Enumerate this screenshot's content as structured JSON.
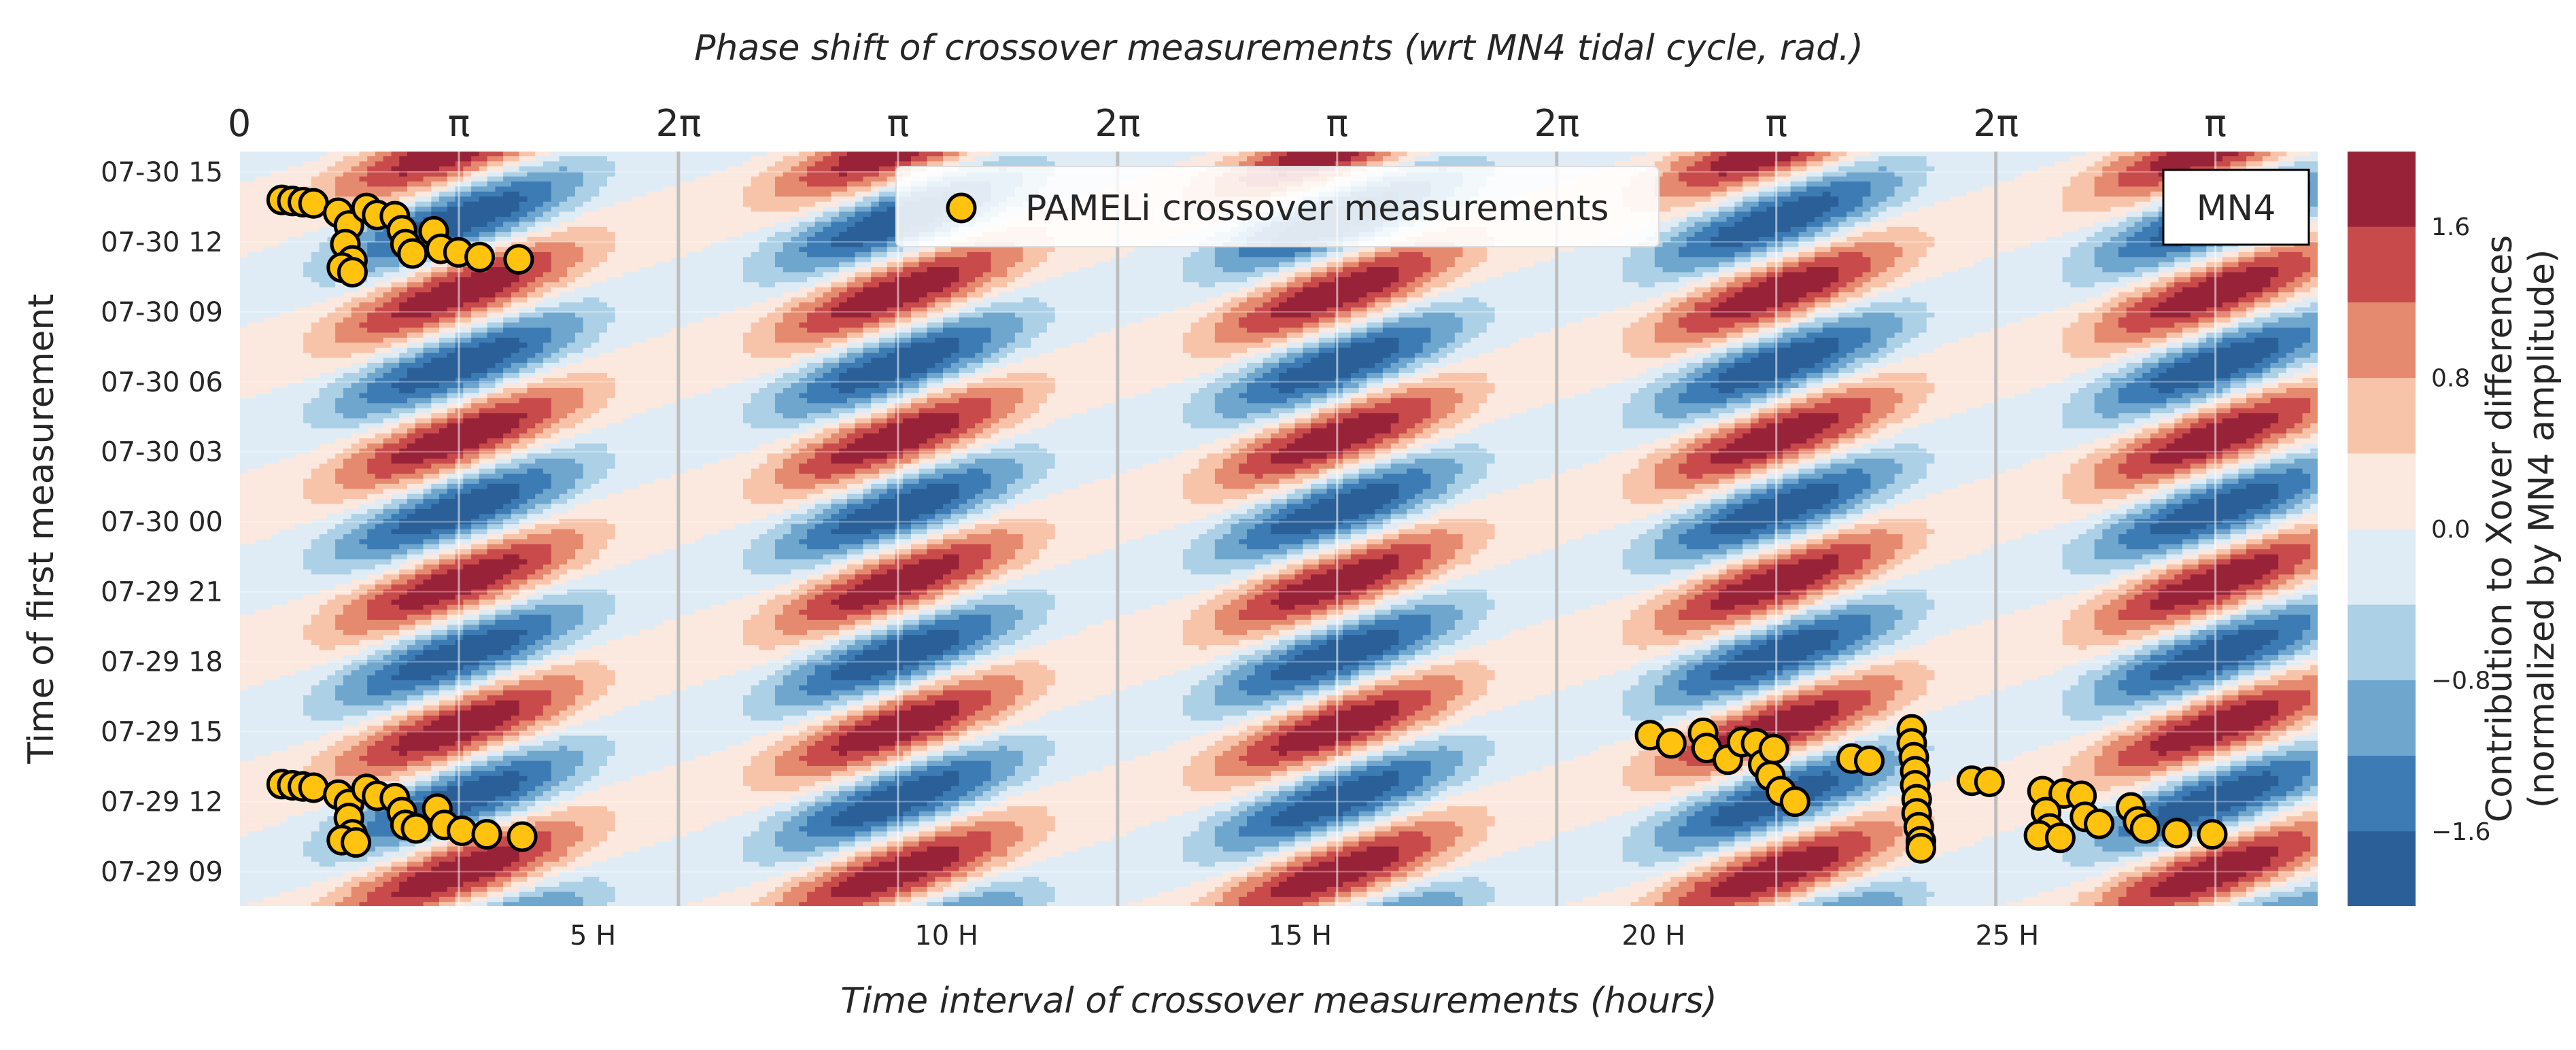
{
  "chart_data": {
    "type": "contour",
    "title_top": "Phase shift of crossover measurements (wrt MN4 tidal cycle, rad.)",
    "xlabel": "Time interval of crossover measurements (hours)",
    "ylabel": "Time of first measurement",
    "badge": "MN4",
    "legend_label": "PAMELi crossover measurements",
    "colorbar_label_line1": "Contribution to Xover differences",
    "colorbar_label_line2": "(normalized by MN4 amplitude)",
    "colorbar_ticks": [
      "1.6",
      "0.8",
      "0.0",
      "−0.8",
      "−1.6"
    ],
    "colorbar_tick_values": [
      1.6,
      0.8,
      0.0,
      -0.8,
      -1.6
    ],
    "colorbar_levels": [
      -2.0,
      -1.6,
      -1.2,
      -0.8,
      -0.4,
      0.0,
      0.4,
      0.8,
      1.2,
      1.6,
      2.0
    ],
    "colorbar_colors": [
      "#2a5f97",
      "#3d7bb4",
      "#6fa6ce",
      "#acd0e5",
      "#e0ecf5",
      "#fbe8de",
      "#f7c4aa",
      "#e58a6f",
      "#c84a4b",
      "#982238"
    ],
    "xlim": [
      0,
      29.4
    ],
    "x_ticks": [
      5,
      10,
      15,
      20,
      25
    ],
    "x_tick_labels": [
      "5 H",
      "10 H",
      "15 H",
      "20 H",
      "25 H"
    ],
    "period_hours": 6.21,
    "top_ticks": [
      {
        "hours": 0,
        "label": "0"
      },
      {
        "hours": 3.105,
        "label": "π"
      },
      {
        "hours": 6.21,
        "label": "2π"
      },
      {
        "hours": 9.315,
        "label": "π"
      },
      {
        "hours": 12.42,
        "label": "2π"
      },
      {
        "hours": 15.525,
        "label": "π"
      },
      {
        "hours": 18.63,
        "label": "2π"
      },
      {
        "hours": 21.735,
        "label": "π"
      },
      {
        "hours": 24.84,
        "label": "2π"
      },
      {
        "hours": 27.945,
        "label": "π"
      }
    ],
    "ylim_hours": [
      -1.5,
      30.9
    ],
    "y_ticks": [
      {
        "hours": 0,
        "label": "07-29 09"
      },
      {
        "hours": 3,
        "label": "07-29 12"
      },
      {
        "hours": 6,
        "label": "07-29 15"
      },
      {
        "hours": 9,
        "label": "07-29 18"
      },
      {
        "hours": 12,
        "label": "07-29 21"
      },
      {
        "hours": 15,
        "label": "07-30 00"
      },
      {
        "hours": 18,
        "label": "07-30 03"
      },
      {
        "hours": 21,
        "label": "07-30 06"
      },
      {
        "hours": 24,
        "label": "07-30 09"
      },
      {
        "hours": 27,
        "label": "07-30 12"
      },
      {
        "hours": 30,
        "label": "07-30 15"
      }
    ],
    "points": [
      {
        "x": 0.6,
        "y": 28.8
      },
      {
        "x": 0.75,
        "y": 28.75
      },
      {
        "x": 0.9,
        "y": 28.7
      },
      {
        "x": 1.05,
        "y": 28.65
      },
      {
        "x": 1.4,
        "y": 28.25
      },
      {
        "x": 1.55,
        "y": 27.7
      },
      {
        "x": 1.5,
        "y": 26.9
      },
      {
        "x": 1.6,
        "y": 26.2
      },
      {
        "x": 1.45,
        "y": 25.9
      },
      {
        "x": 1.6,
        "y": 25.7
      },
      {
        "x": 1.8,
        "y": 28.45
      },
      {
        "x": 1.95,
        "y": 28.15
      },
      {
        "x": 2.2,
        "y": 28.1
      },
      {
        "x": 2.3,
        "y": 27.5
      },
      {
        "x": 2.35,
        "y": 26.9
      },
      {
        "x": 2.45,
        "y": 26.5
      },
      {
        "x": 2.75,
        "y": 27.45
      },
      {
        "x": 2.85,
        "y": 26.7
      },
      {
        "x": 3.1,
        "y": 26.55
      },
      {
        "x": 3.4,
        "y": 26.35
      },
      {
        "x": 3.95,
        "y": 26.25
      },
      {
        "x": 0.6,
        "y": 3.75
      },
      {
        "x": 0.75,
        "y": 3.7
      },
      {
        "x": 0.9,
        "y": 3.65
      },
      {
        "x": 1.05,
        "y": 3.6
      },
      {
        "x": 1.4,
        "y": 3.3
      },
      {
        "x": 1.55,
        "y": 2.9
      },
      {
        "x": 1.55,
        "y": 2.3
      },
      {
        "x": 1.6,
        "y": 1.6
      },
      {
        "x": 1.45,
        "y": 1.35
      },
      {
        "x": 1.65,
        "y": 1.25
      },
      {
        "x": 1.8,
        "y": 3.55
      },
      {
        "x": 1.95,
        "y": 3.25
      },
      {
        "x": 2.2,
        "y": 3.15
      },
      {
        "x": 2.3,
        "y": 2.55
      },
      {
        "x": 2.35,
        "y": 2.0
      },
      {
        "x": 2.5,
        "y": 1.85
      },
      {
        "x": 2.8,
        "y": 2.7
      },
      {
        "x": 2.9,
        "y": 2.0
      },
      {
        "x": 3.15,
        "y": 1.75
      },
      {
        "x": 3.5,
        "y": 1.6
      },
      {
        "x": 4.0,
        "y": 1.5
      },
      {
        "x": 19.95,
        "y": 5.85
      },
      {
        "x": 20.25,
        "y": 5.5
      },
      {
        "x": 20.7,
        "y": 5.95
      },
      {
        "x": 20.75,
        "y": 5.3
      },
      {
        "x": 21.05,
        "y": 4.8
      },
      {
        "x": 21.25,
        "y": 5.55
      },
      {
        "x": 21.45,
        "y": 5.5
      },
      {
        "x": 21.55,
        "y": 4.6
      },
      {
        "x": 21.7,
        "y": 5.25
      },
      {
        "x": 21.65,
        "y": 4.1
      },
      {
        "x": 21.8,
        "y": 3.45
      },
      {
        "x": 22.0,
        "y": 3.0
      },
      {
        "x": 22.8,
        "y": 4.85
      },
      {
        "x": 23.05,
        "y": 4.75
      },
      {
        "x": 23.65,
        "y": 6.1
      },
      {
        "x": 23.65,
        "y": 5.5
      },
      {
        "x": 23.68,
        "y": 4.9
      },
      {
        "x": 23.7,
        "y": 4.3
      },
      {
        "x": 23.7,
        "y": 3.7
      },
      {
        "x": 23.72,
        "y": 3.1
      },
      {
        "x": 23.72,
        "y": 2.5
      },
      {
        "x": 23.75,
        "y": 1.9
      },
      {
        "x": 23.78,
        "y": 1.3
      },
      {
        "x": 23.78,
        "y": 1.0
      },
      {
        "x": 24.5,
        "y": 3.9
      },
      {
        "x": 24.75,
        "y": 3.85
      },
      {
        "x": 25.5,
        "y": 3.45
      },
      {
        "x": 25.8,
        "y": 3.35
      },
      {
        "x": 26.05,
        "y": 3.25
      },
      {
        "x": 25.55,
        "y": 2.55
      },
      {
        "x": 25.6,
        "y": 1.85
      },
      {
        "x": 25.45,
        "y": 1.55
      },
      {
        "x": 25.75,
        "y": 1.45
      },
      {
        "x": 26.1,
        "y": 2.35
      },
      {
        "x": 26.3,
        "y": 2.05
      },
      {
        "x": 26.75,
        "y": 2.75
      },
      {
        "x": 26.85,
        "y": 2.15
      },
      {
        "x": 26.95,
        "y": 1.85
      },
      {
        "x": 27.4,
        "y": 1.65
      },
      {
        "x": 27.9,
        "y": 1.6
      }
    ]
  }
}
